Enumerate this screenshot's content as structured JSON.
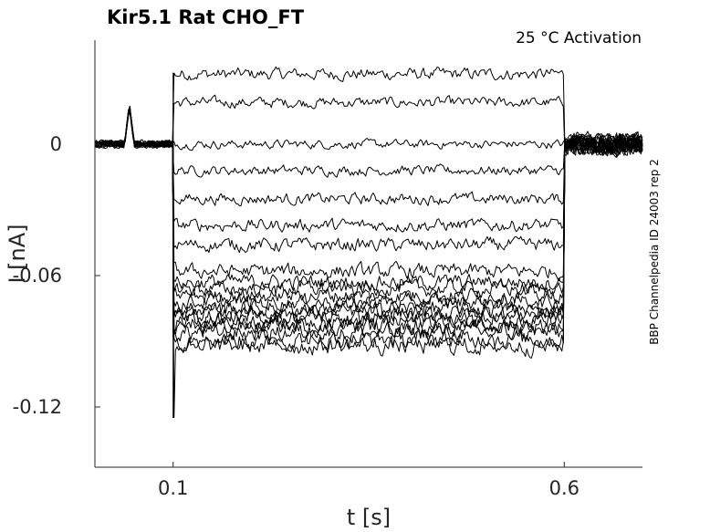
{
  "chart_data": {
    "type": "line",
    "title": "Kir5.1  Rat  CHO_FT",
    "annotation": "25 °C  Activation",
    "side_label": "BBP Channelpedia ID 24003 rep 2",
    "xlabel": "t [s]",
    "ylabel": "I [nA]",
    "xlim": [
      0.0,
      0.7
    ],
    "ylim": [
      -0.1475,
      0.0475
    ],
    "x_ticks": [
      {
        "value": 0.1,
        "label": "0.1"
      },
      {
        "value": 0.6,
        "label": "0.6"
      }
    ],
    "y_ticks": [
      {
        "value": 0,
        "label": "0"
      },
      {
        "value": -0.06,
        "label": "-0.06"
      },
      {
        "value": -0.12,
        "label": "-0.12"
      }
    ],
    "grid": false,
    "stimulus": {
      "pulse_start": 0.1,
      "pulse_end": 0.6,
      "artifact_start": 0.038,
      "artifact_end": 0.05,
      "artifact_amplitude": 0.018
    },
    "series_description": "overlaid current traces, one per activation voltage step",
    "trace_steady_levels": [
      0.032,
      0.019,
      0.0,
      -0.012,
      -0.025,
      -0.037,
      -0.046,
      -0.058,
      -0.063,
      -0.066,
      -0.069,
      -0.072,
      -0.075,
      -0.077,
      -0.079,
      -0.081,
      -0.083,
      -0.086,
      -0.089,
      -0.092
    ],
    "noise_amplitude": 0.0035,
    "baseline_level": 0.0,
    "onset_transient_min": -0.125
  }
}
